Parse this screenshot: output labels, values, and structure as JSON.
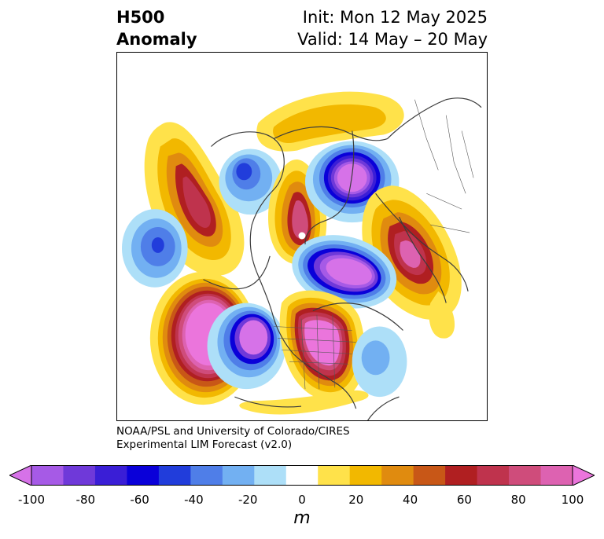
{
  "title": {
    "left": "H500\nAnomaly",
    "right": "Init: Mon 12 May 2025\nValid: 14 May – 20 May"
  },
  "credit": {
    "line1": "NOAA/PSL and University of Colorado/CIRES",
    "line2": "Experimental LIM Forecast (v2.0)"
  },
  "colorbar": {
    "ticks": [
      "-100",
      "-80",
      "-60",
      "-40",
      "-20",
      "0",
      "20",
      "40",
      "60",
      "80",
      "100"
    ],
    "units": "m",
    "colors": [
      "#d672e8",
      "#a65ae6",
      "#6f39d9",
      "#3a1ed6",
      "#0a00d9",
      "#213ddb",
      "#4f7ee8",
      "#72b0f2",
      "#addff8",
      "#ffffff",
      "#ffe24a",
      "#f2b800",
      "#e08b0f",
      "#c85717",
      "#b01f21",
      "#bf334d",
      "#cf4c7b",
      "#dd62b1",
      "#eb75dc"
    ]
  },
  "map": {
    "features": [
      "coastlines",
      "country-borders",
      "state-borders",
      "H500 anomaly contours"
    ]
  }
}
